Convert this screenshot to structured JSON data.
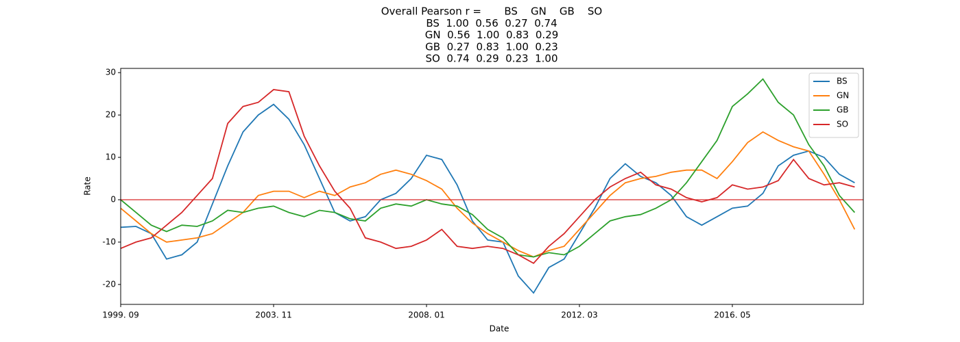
{
  "chart_data": {
    "type": "line",
    "title": [
      "Overall Pearson r =       BS    GN    GB    SO",
      "BS  1.00  0.56  0.27  0.74",
      "GN  0.56  1.00  0.83  0.29",
      "GB  0.27  0.83  1.00  0.23",
      "SO  0.74  0.29  0.23  1.00"
    ],
    "x_label": "Date",
    "y_label": "Rate",
    "categories": [
      "1999. 09",
      null,
      null,
      null,
      null,
      null,
      null,
      null,
      null,
      null,
      "2003. 11",
      null,
      null,
      null,
      null,
      null,
      null,
      null,
      null,
      null,
      "2008. 01",
      null,
      null,
      null,
      null,
      null,
      null,
      null,
      null,
      null,
      "2012. 03",
      null,
      null,
      null,
      null,
      null,
      null,
      null,
      null,
      null,
      "2016. 05",
      null,
      null,
      null,
      null,
      null,
      null,
      null,
      null
    ],
    "ylim": [
      -24.7,
      31
    ],
    "yticks": [
      -20,
      -10,
      0,
      10,
      20,
      30
    ],
    "hline": {
      "value": 0,
      "color": "#d62728"
    },
    "legend": "upper right",
    "series": [
      {
        "name": "BS",
        "color": "#1f77b4",
        "values": [
          -6.5,
          -6.3,
          -8,
          -14,
          -13,
          -10,
          -1,
          8,
          16,
          20,
          22.5,
          19,
          13,
          5,
          -3,
          -5,
          -4,
          0,
          1.5,
          5,
          10.5,
          9.5,
          3.5,
          -5,
          -9.5,
          -10,
          -18,
          -22,
          -16,
          -14,
          -8,
          -2,
          5,
          8.5,
          5.5,
          4,
          1,
          -4,
          -6,
          -4,
          -2,
          -1.5,
          1.5,
          8,
          10.5,
          11.5,
          10,
          6,
          4
        ]
      },
      {
        "name": "GN",
        "color": "#ff7f0e",
        "values": [
          -2,
          -5,
          -8,
          -10,
          -9.5,
          -9,
          -8,
          -5.5,
          -3,
          1,
          2,
          2,
          0.5,
          2,
          1,
          3,
          4,
          6,
          7,
          6,
          4.5,
          2.5,
          -2,
          -5.5,
          -8,
          -10,
          -12,
          -13.5,
          -12,
          -11,
          -7,
          -3,
          1,
          4,
          5,
          5.5,
          6.5,
          7,
          7,
          5,
          9,
          13.5,
          16,
          14,
          12.5,
          11.5,
          6,
          0,
          -7
        ]
      },
      {
        "name": "GB",
        "color": "#2ca02c",
        "values": [
          0,
          -3,
          -6,
          -7.5,
          -6,
          -6.3,
          -5,
          -2.5,
          -3,
          -2,
          -1.5,
          -3,
          -4,
          -2.5,
          -3,
          -4.5,
          -5,
          -2,
          -1,
          -1.5,
          0,
          -1,
          -1.5,
          -3.5,
          -7,
          -9,
          -13,
          -13.5,
          -12.5,
          -13,
          -11,
          -8,
          -5,
          -4,
          -3.5,
          -2,
          0,
          4,
          9,
          14,
          22,
          25,
          28.5,
          23,
          20,
          13,
          8,
          1,
          -3
        ]
      },
      {
        "name": "SO",
        "color": "#d62728",
        "values": [
          -11.5,
          -10,
          -9,
          -6,
          -3,
          1,
          5,
          18,
          22,
          23,
          26,
          25.5,
          15,
          8,
          2,
          -2,
          -9,
          -10,
          -11.5,
          -11,
          -9.5,
          -7,
          -11,
          -11.5,
          -11,
          -11.5,
          -13,
          -15,
          -11,
          -8,
          -4,
          0,
          3,
          5,
          6.5,
          3.5,
          2.5,
          0.5,
          -0.5,
          0.5,
          3.5,
          2.5,
          3,
          4.5,
          9.5,
          5,
          3.5,
          4,
          3
        ]
      }
    ]
  }
}
